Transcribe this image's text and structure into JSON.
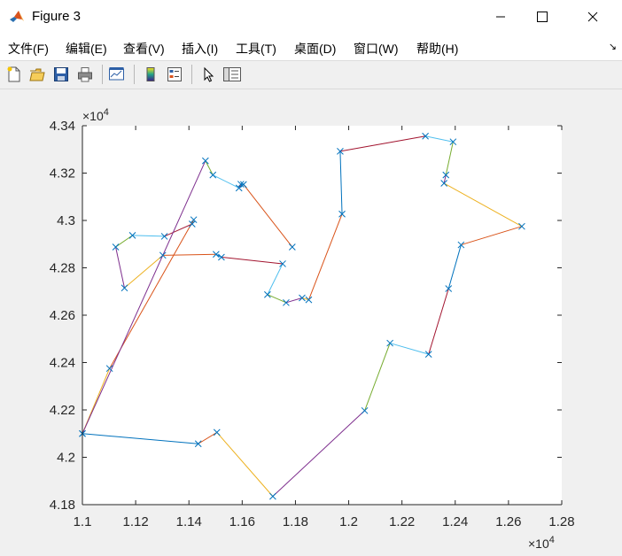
{
  "window": {
    "title": "Figure 3"
  },
  "menu": {
    "items": [
      "文件(F)",
      "编辑(E)",
      "查看(V)",
      "插入(I)",
      "工具(T)",
      "桌面(D)",
      "窗口(W)",
      "帮助(H)"
    ]
  },
  "toolbar": {
    "icons": [
      "new-figure-icon",
      "open-file-icon",
      "save-icon",
      "print-icon",
      "link-plot-icon",
      "colorbar-icon",
      "legend-icon",
      "pointer-icon",
      "property-inspector-icon"
    ]
  },
  "chart_data": {
    "type": "line",
    "marker": "x",
    "x_multiplier_label": "×10",
    "x_multiplier_exp": "4",
    "y_multiplier_label": "×10",
    "y_multiplier_exp": "4",
    "xlim": [
      1.1,
      1.28
    ],
    "ylim": [
      4.18,
      4.34
    ],
    "xticks": [
      "1.1",
      "1.12",
      "1.14",
      "1.16",
      "1.18",
      "1.2",
      "1.22",
      "1.24",
      "1.26",
      "1.28"
    ],
    "yticks": [
      "4.18",
      "4.2",
      "4.22",
      "4.24",
      "4.26",
      "4.28",
      "4.3",
      "4.32",
      "4.34"
    ],
    "colors": [
      "#0072BD",
      "#D95319",
      "#EDB120",
      "#7E2F8E",
      "#77AC30",
      "#4DBEEE",
      "#A2142F"
    ],
    "x": [
      1.1,
      1.1435,
      1.1505,
      1.1715,
      1.206,
      1.2155,
      1.23,
      1.2375,
      1.2422,
      1.265,
      1.2358,
      1.2365,
      1.2392,
      1.2288,
      1.1968,
      1.1975,
      1.185,
      1.1825,
      1.1765,
      1.1695,
      1.1752,
      1.1522,
      1.1502,
      1.1302,
      1.1158,
      1.1125,
      1.1188,
      1.1308,
      1.1412,
      1.1418,
      1.1102,
      1.1,
      1.1462,
      1.149,
      1.1588,
      1.1595,
      1.1605,
      1.1788
    ],
    "y": [
      4.21,
      4.2057,
      4.2105,
      4.1835,
      4.2197,
      4.2482,
      4.2435,
      4.2712,
      4.2897,
      4.2975,
      4.3157,
      4.3192,
      4.3332,
      4.3356,
      4.3292,
      4.3027,
      4.2665,
      4.2673,
      4.2653,
      4.2687,
      4.2817,
      4.2845,
      4.2857,
      4.2853,
      4.2715,
      4.2888,
      4.2937,
      4.2933,
      4.2985,
      4.3003,
      4.2375,
      4.21,
      4.3252,
      4.3192,
      4.3137,
      4.3153,
      4.3152,
      4.2888
    ]
  }
}
